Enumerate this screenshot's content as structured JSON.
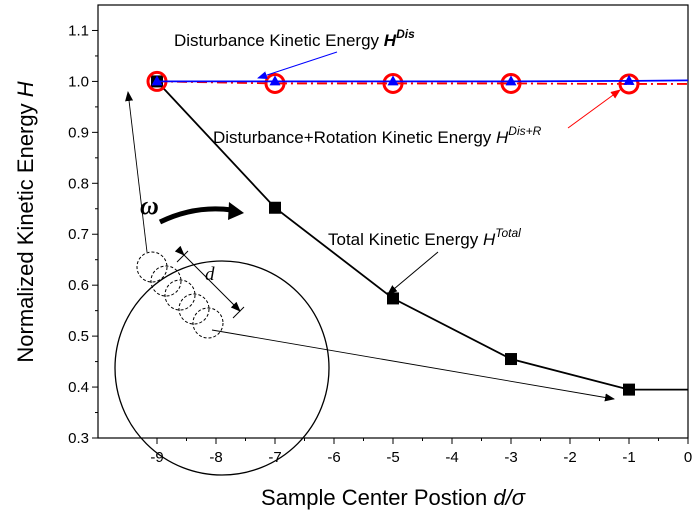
{
  "chart_data": {
    "type": "line",
    "xlabel": "Sample Center Postion d/σ",
    "xlabel_main": "Sample Center Postion ",
    "xlabel_var": "d/σ",
    "ylabel": "Normalized Kinetic Energy H",
    "ylabel_main": "Normalized Kinetic Energy ",
    "ylabel_var": "H",
    "xlim": [
      -10,
      0
    ],
    "ylim": [
      0.3,
      1.15
    ],
    "x_ticks": [
      -9,
      -8,
      -7,
      -6,
      -5,
      -4,
      -3,
      -2,
      -1,
      0
    ],
    "y_ticks": [
      0.3,
      0.4,
      0.5,
      0.6,
      0.7,
      0.8,
      0.9,
      1.0,
      1.1
    ],
    "x_tick_labels": [
      "-9",
      "-8",
      "-7",
      "-6",
      "-5",
      "-4",
      "-3",
      "-2",
      "-1",
      "0"
    ],
    "y_tick_labels": [
      "0.3",
      "0.4",
      "0.5",
      "0.6",
      "0.7",
      "0.8",
      "0.9",
      "1.0",
      "1.1"
    ],
    "grid": false,
    "series": [
      {
        "name": "Total Kinetic Energy H^Total",
        "color": "#000000",
        "marker": "square",
        "x": [
          -9,
          -7,
          -5,
          -3,
          -1
        ],
        "y": [
          1.0,
          0.752,
          0.574,
          0.455,
          0.395
        ],
        "extend_to_x": 0
      },
      {
        "name": "Disturbance Kinetic Energy H^Dis",
        "color": "#0000ff",
        "marker": "triangle",
        "x": [
          -9,
          -7,
          -5,
          -3,
          -1
        ],
        "y": [
          1.0,
          1.0,
          1.0,
          1.0,
          1.001
        ],
        "extend_to_x": 0,
        "extend_to_y": 1.002
      },
      {
        "name": "Disturbance+Rotation Kinetic Energy H^Dis+R",
        "color": "#ff0000",
        "marker": "open-circle",
        "line_style": "dash-dot",
        "x": [
          -9,
          -7,
          -5,
          -3,
          -1
        ],
        "y": [
          1.0,
          0.996,
          0.996,
          0.996,
          0.995
        ],
        "extend_to_x": 0
      }
    ],
    "annotations": {
      "dis": {
        "text": "Disturbance Kinetic Energy ",
        "symbol": "H",
        "sup": "Dis"
      },
      "disr": {
        "text": "Disturbance+Rotation Kinetic Energy ",
        "symbol": "H",
        "sup": "Dis+R"
      },
      "total": {
        "text": "Total Kinetic Energy ",
        "symbol": "H",
        "sup": "Total"
      },
      "omega": "ω",
      "d": "d"
    },
    "inset": {
      "description_shape": "large circle with five dashed sampling circles along a diagonal, rotation arrow ω and spacing d"
    }
  }
}
